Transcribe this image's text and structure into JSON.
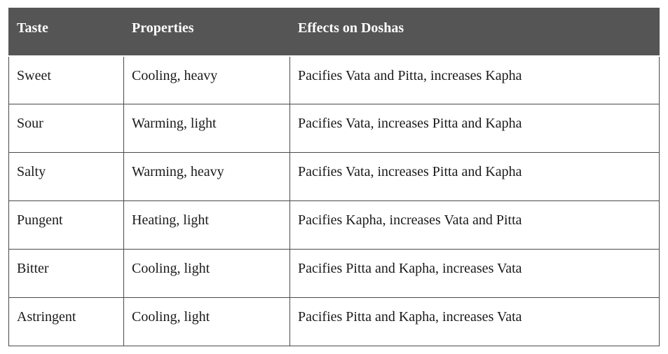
{
  "table": {
    "headers": [
      "Taste",
      "Properties",
      "Effects on Doshas"
    ],
    "rows": [
      [
        "Sweet",
        "Cooling, heavy",
        "Pacifies Vata and Pitta, increases Kapha"
      ],
      [
        "Sour",
        "Warming, light",
        "Pacifies Vata, increases Pitta and Kapha"
      ],
      [
        "Salty",
        "Warming, heavy",
        "Pacifies Vata, increases Pitta and Kapha"
      ],
      [
        "Pungent",
        "Heating, light",
        "Pacifies Kapha, increases Vata and Pitta"
      ],
      [
        "Bitter",
        "Cooling, light",
        "Pacifies Pitta and Kapha, increases Vata"
      ],
      [
        "Astringent",
        "Cooling, light",
        "Pacifies Pitta and Kapha, increases Vata"
      ]
    ]
  },
  "colors": {
    "header_background": "#555555",
    "header_text": "#ffffff",
    "border": "#4a4a4a",
    "cell_text": "#1a1a1a"
  }
}
